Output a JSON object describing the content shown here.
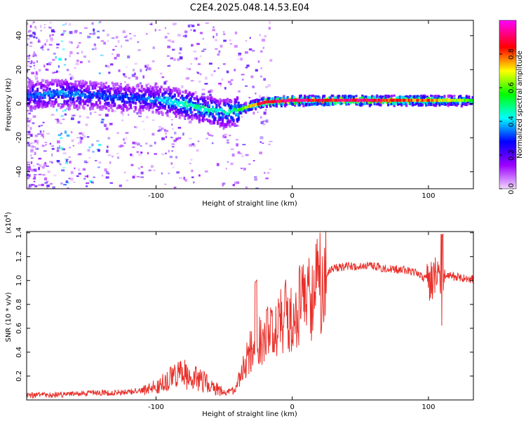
{
  "title": "C2E4.2025.048.14.53.E04",
  "chart_data": [
    {
      "type": "heatmap",
      "xlabel": "Height of straight line (km)",
      "ylabel": "Frequency (Hz)",
      "xlim": [
        -195,
        133
      ],
      "ylim": [
        -50,
        49
      ],
      "xticks": [
        "-100",
        "0",
        "100"
      ],
      "yticks": [
        "40",
        "20",
        "0",
        "-20",
        "-40"
      ],
      "grid": false,
      "colorbar": {
        "label": "Normalized spectral amplitude",
        "range": [
          0,
          1
        ],
        "ticks": [
          "0.0",
          "0.2",
          "0.4",
          "0.6",
          "0.8"
        ],
        "colors": [
          "#f2d8ff",
          "#9b00ff",
          "#0000ff",
          "#00ffff",
          "#00ff00",
          "#ffff00",
          "#ff0000",
          "#ff00ff"
        ]
      },
      "ridge": {
        "x": [
          -195,
          -170,
          -150,
          -130,
          -110,
          -95,
          -80,
          -65,
          -55,
          -45,
          -38,
          -30,
          -20,
          0,
          20,
          50,
          80,
          100,
          133
        ],
        "freq": [
          5,
          6,
          5,
          4,
          3,
          2,
          0,
          -3,
          -5,
          -5,
          -3,
          -1,
          1,
          2,
          2,
          2,
          2,
          2,
          2
        ],
        "amplitude": [
          0.35,
          0.38,
          0.35,
          0.33,
          0.34,
          0.42,
          0.5,
          0.5,
          0.45,
          0.5,
          0.6,
          0.8,
          0.9,
          0.95,
          0.9,
          0.95,
          0.85,
          0.8,
          0.6
        ]
      }
    },
    {
      "type": "line",
      "xlabel": "Height of straight line (km)",
      "ylabel": "SNR (10 * v/v)",
      "scale_note": "(x10",
      "scale_exp": "4",
      "xlim": [
        -195,
        133
      ],
      "ylim": [
        0,
        14100
      ],
      "xticks": [
        "-100",
        "0",
        "100"
      ],
      "yticks": [
        "0.2",
        "0.4",
        "0.6",
        "0.8",
        "1.0",
        "1.2",
        "1.4"
      ],
      "grid": false,
      "series": [
        {
          "color": "#e8302a",
          "x": [
            -195,
            -180,
            -160,
            -145,
            -130,
            -110,
            -100,
            -90,
            -80,
            -70,
            -60,
            -50,
            -42,
            -35,
            -30,
            -25,
            -20,
            -10,
            0,
            10,
            20,
            25,
            30,
            40,
            50,
            60,
            70,
            80,
            90,
            95,
            100,
            105,
            110,
            115,
            120,
            133
          ],
          "y": [
            400,
            400,
            500,
            600,
            600,
            800,
            1100,
            1700,
            2200,
            1800,
            1200,
            600,
            800,
            3000,
            4200,
            5000,
            5500,
            6500,
            7400,
            8400,
            9800,
            10600,
            11000,
            11200,
            11200,
            11200,
            11000,
            10900,
            10700,
            10300,
            10000,
            10200,
            9800,
            10400,
            10300,
            10100
          ]
        }
      ]
    }
  ]
}
